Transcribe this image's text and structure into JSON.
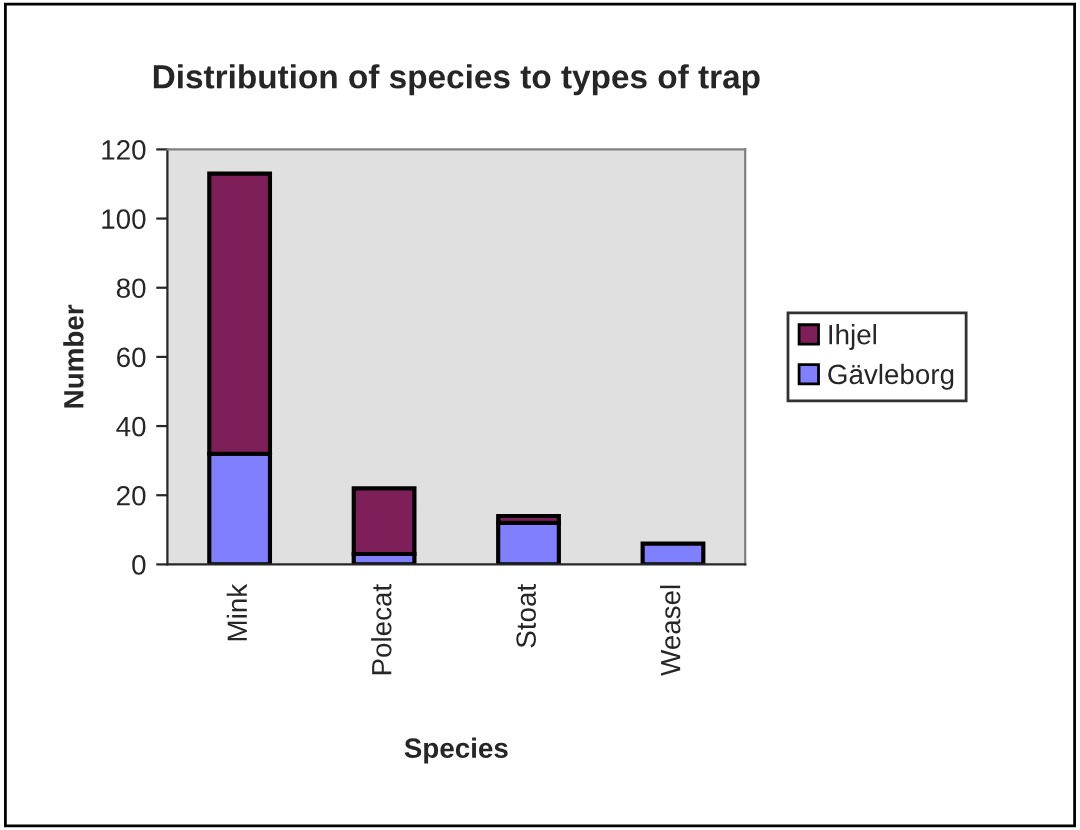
{
  "chart_data": {
    "type": "bar",
    "title": "Distribution of species to types of trap",
    "xlabel": "Species",
    "ylabel": "Number",
    "categories": [
      "Mink",
      "Polecat",
      "Stoat",
      "Weasel"
    ],
    "series": [
      {
        "name": "Gävleborg",
        "color": "#8080ff",
        "values": [
          32,
          3,
          12,
          6
        ]
      },
      {
        "name": "Ihjel",
        "color": "#7f1f5a",
        "values": [
          81,
          19,
          2,
          null
        ]
      }
    ],
    "stacked": true,
    "ylim": [
      0,
      120
    ],
    "yticks": [
      0,
      20,
      40,
      60,
      80,
      100,
      120
    ],
    "grid": false,
    "legend": "right"
  }
}
